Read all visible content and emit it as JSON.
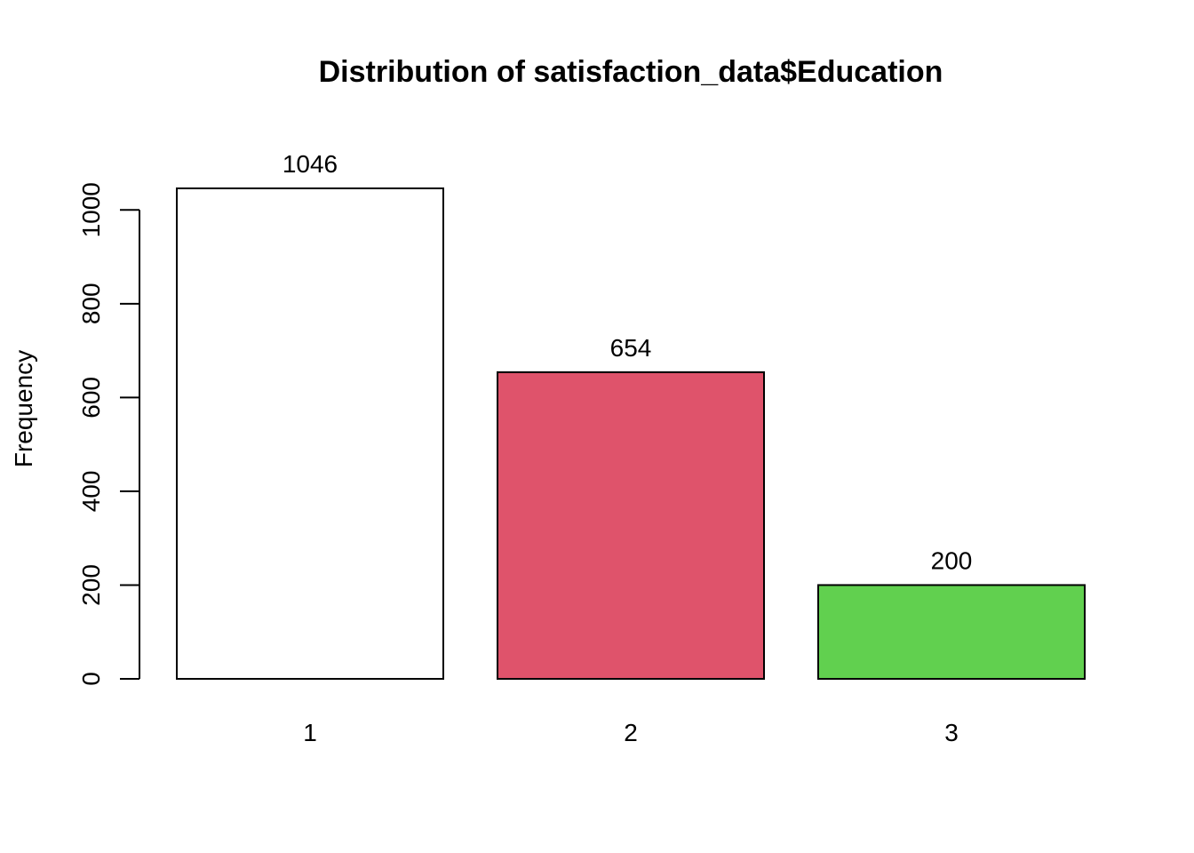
{
  "chart_data": {
    "type": "bar",
    "title": "Distribution of satisfaction_data$Education",
    "xlabel": "",
    "ylabel": "Frequency",
    "categories": [
      "1",
      "2",
      "3"
    ],
    "values": [
      1046,
      654,
      200
    ],
    "data_labels": [
      "1046",
      "654",
      "200"
    ],
    "colors": [
      "#FFFFFF",
      "#DF536B",
      "#61D04F"
    ],
    "ylim": [
      0,
      1046
    ],
    "yticks": [
      0,
      200,
      400,
      600,
      800,
      1000
    ],
    "ytick_labels": [
      "0",
      "200",
      "400",
      "600",
      "800",
      "1000"
    ],
    "grid": false,
    "legend": "none"
  }
}
